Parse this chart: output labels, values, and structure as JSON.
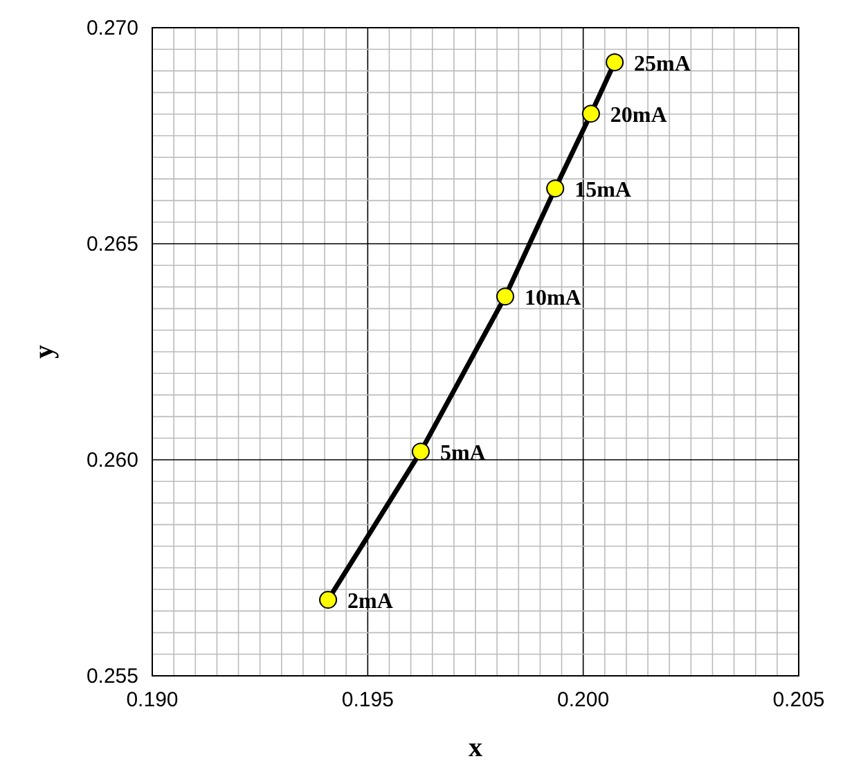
{
  "chart_data": {
    "type": "line",
    "xlabel": "x",
    "ylabel": "y",
    "x": [
      0.19408,
      0.19623,
      0.19819,
      0.19935,
      0.20018,
      0.20073
    ],
    "series": [
      {
        "color": "#000000",
        "values": [
          0.25676,
          0.26019,
          0.26378,
          0.26628,
          0.26801,
          0.2692
        ]
      }
    ],
    "marker": "circle",
    "line_style": "solid",
    "grid": true,
    "xlim": [
      0.19,
      0.205
    ],
    "ylim": [
      0.255,
      0.27
    ],
    "xticks": [
      {
        "value": 0.19,
        "label": "0.190"
      },
      {
        "value": 0.1905,
        "label": null
      },
      {
        "value": 0.191,
        "label": null
      },
      {
        "value": 0.1915,
        "label": null
      },
      {
        "value": 0.192,
        "label": null
      },
      {
        "value": 0.1925,
        "label": null
      },
      {
        "value": 0.193,
        "label": null
      },
      {
        "value": 0.1935,
        "label": null
      },
      {
        "value": 0.194,
        "label": null
      },
      {
        "value": 0.1945,
        "label": null
      },
      {
        "value": 0.195,
        "label": "0.195"
      },
      {
        "value": 0.1955,
        "label": null
      },
      {
        "value": 0.196,
        "label": null
      },
      {
        "value": 0.1965,
        "label": null
      },
      {
        "value": 0.197,
        "label": null
      },
      {
        "value": 0.1975,
        "label": null
      },
      {
        "value": 0.198,
        "label": null
      },
      {
        "value": 0.1985,
        "label": null
      },
      {
        "value": 0.199,
        "label": null
      },
      {
        "value": 0.1995,
        "label": null
      },
      {
        "value": 0.2,
        "label": "0.200"
      },
      {
        "value": 0.2005,
        "label": null
      },
      {
        "value": 0.201,
        "label": null
      },
      {
        "value": 0.2015,
        "label": null
      },
      {
        "value": 0.202,
        "label": null
      },
      {
        "value": 0.2025,
        "label": null
      },
      {
        "value": 0.203,
        "label": null
      },
      {
        "value": 0.2035,
        "label": null
      },
      {
        "value": 0.204,
        "label": null
      },
      {
        "value": 0.2045,
        "label": null
      },
      {
        "value": 0.205,
        "label": "0.205"
      }
    ],
    "yticks": [
      {
        "value": 0.255,
        "label": "0.255"
      },
      {
        "value": 0.2555,
        "label": null
      },
      {
        "value": 0.256,
        "label": null
      },
      {
        "value": 0.2565,
        "label": null
      },
      {
        "value": 0.257,
        "label": null
      },
      {
        "value": 0.2575,
        "label": null
      },
      {
        "value": 0.258,
        "label": null
      },
      {
        "value": 0.2585,
        "label": null
      },
      {
        "value": 0.259,
        "label": null
      },
      {
        "value": 0.2595,
        "label": null
      },
      {
        "value": 0.26,
        "label": "0.260"
      },
      {
        "value": 0.2605,
        "label": null
      },
      {
        "value": 0.261,
        "label": null
      },
      {
        "value": 0.2615,
        "label": null
      },
      {
        "value": 0.262,
        "label": null
      },
      {
        "value": 0.2625,
        "label": null
      },
      {
        "value": 0.263,
        "label": null
      },
      {
        "value": 0.2635,
        "label": null
      },
      {
        "value": 0.264,
        "label": null
      },
      {
        "value": 0.2645,
        "label": null
      },
      {
        "value": 0.265,
        "label": "0.265"
      },
      {
        "value": 0.2655,
        "label": null
      },
      {
        "value": 0.266,
        "label": null
      },
      {
        "value": 0.2665,
        "label": null
      },
      {
        "value": 0.267,
        "label": null
      },
      {
        "value": 0.2675,
        "label": null
      },
      {
        "value": 0.268,
        "label": null
      },
      {
        "value": 0.2685,
        "label": null
      },
      {
        "value": 0.269,
        "label": null
      },
      {
        "value": 0.2695,
        "label": null
      },
      {
        "value": 0.27,
        "label": "0.270"
      }
    ],
    "annotations": [
      {
        "text": "2mA",
        "x": 0.19408,
        "y": 0.25676
      },
      {
        "text": "5mA",
        "x": 0.19623,
        "y": 0.26019
      },
      {
        "text": "10mA",
        "x": 0.19819,
        "y": 0.26378
      },
      {
        "text": "15mA",
        "x": 0.19935,
        "y": 0.26628
      },
      {
        "text": "20mA",
        "x": 0.20018,
        "y": 0.26801
      },
      {
        "text": "25mA",
        "x": 0.20073,
        "y": 0.2692
      }
    ]
  }
}
